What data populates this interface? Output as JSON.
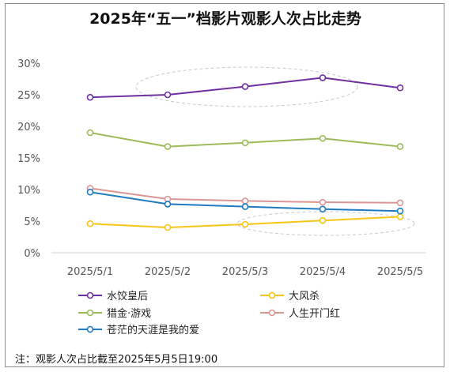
{
  "chart_data": {
    "type": "line",
    "title": "2025年“五一”档影片观影人次占比走势",
    "categories": [
      "2025/5/1",
      "2025/5/2",
      "2025/5/3",
      "2025/5/4",
      "2025/5/5"
    ],
    "yticks": [
      "0%",
      "5%",
      "10%",
      "15%",
      "20%",
      "25%",
      "30%"
    ],
    "ylim": [
      0,
      30
    ],
    "ylabel_unit": "%",
    "grid": false,
    "legend_position": "bottom",
    "series": [
      {
        "name": "水饺皇后",
        "color": "#7030a0",
        "values": [
          24.6,
          25.0,
          26.3,
          27.7,
          26.1
        ]
      },
      {
        "name": "大风杀",
        "color": "#f5c518",
        "values": [
          4.6,
          4.0,
          4.5,
          5.1,
          5.7
        ]
      },
      {
        "name": "猎金·游戏",
        "color": "#9bbb59",
        "values": [
          19.0,
          16.8,
          17.4,
          18.1,
          16.8
        ]
      },
      {
        "name": "人生开门红",
        "color": "#d99694",
        "values": [
          10.2,
          8.5,
          8.2,
          8.0,
          7.9
        ]
      },
      {
        "name": "苍茫的天涯是我的爱",
        "color": "#1f7bbf",
        "values": [
          9.6,
          7.7,
          7.3,
          6.9,
          6.6
        ]
      }
    ],
    "note": "注：观影人次占比截至2025年5月5日19:00"
  }
}
